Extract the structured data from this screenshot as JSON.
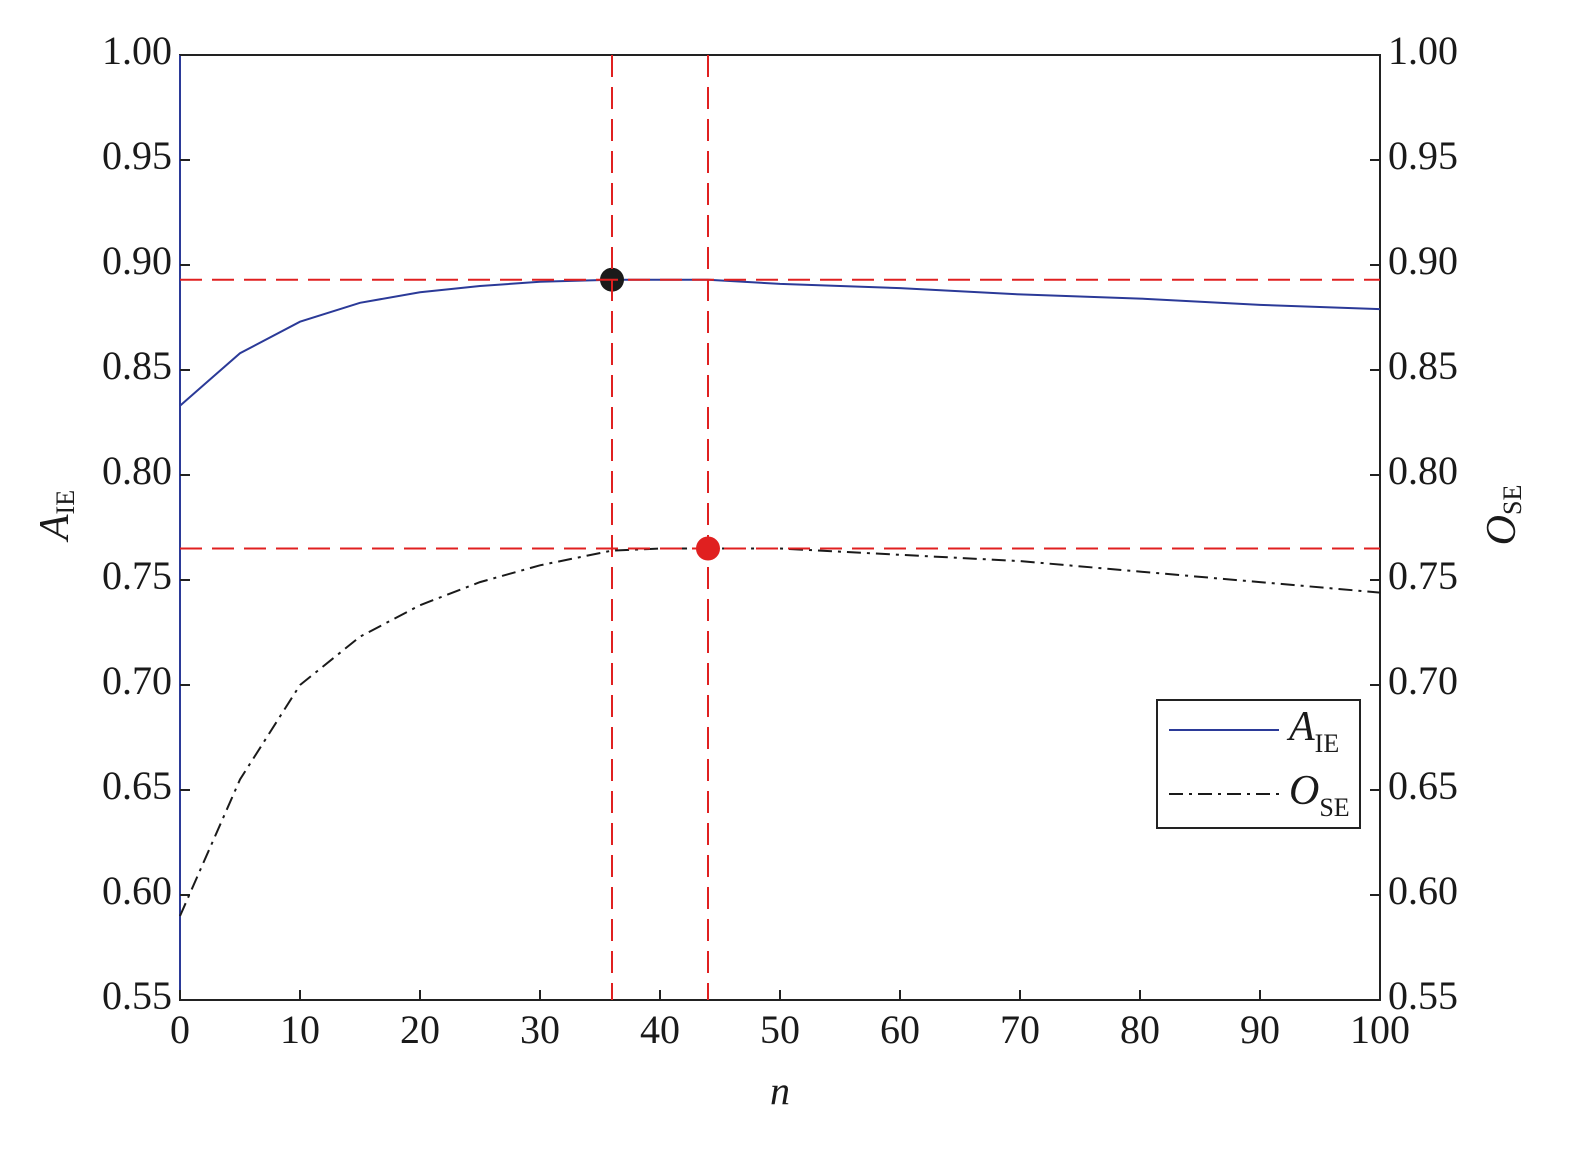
{
  "chart_data": {
    "type": "line",
    "xlabel": "n",
    "ylabel": "A",
    "ylabel_subscript": "IE",
    "y2label": "O",
    "y2label_subscript": "SE",
    "x": [
      0,
      5,
      10,
      15,
      20,
      25,
      30,
      36,
      40,
      44,
      50,
      60,
      70,
      80,
      90,
      100
    ],
    "series": [
      {
        "name": "A",
        "name_subscript": "IE",
        "color": "#2b3a98",
        "style": "solid",
        "values": [
          0.833,
          0.858,
          0.873,
          0.882,
          0.887,
          0.89,
          0.892,
          0.893,
          0.893,
          0.893,
          0.891,
          0.889,
          0.886,
          0.884,
          0.881,
          0.879
        ]
      },
      {
        "name": "O",
        "name_subscript": "SE",
        "color": "#1a1a1a",
        "style": "dashdot",
        "axis": "y2",
        "values": [
          0.59,
          0.655,
          0.7,
          0.723,
          0.738,
          0.749,
          0.757,
          0.764,
          0.765,
          0.765,
          0.765,
          0.762,
          0.759,
          0.754,
          0.749,
          0.744
        ]
      }
    ],
    "xlim": [
      0,
      100
    ],
    "xticks": [
      0,
      10,
      20,
      30,
      40,
      50,
      60,
      70,
      80,
      90,
      100
    ],
    "ylim": [
      0.55,
      1.0
    ],
    "yticks": [
      0.55,
      {
        "value": 0.6,
        "label": "0.60"
      },
      0.65,
      {
        "value": 0.7,
        "label": "0.70"
      },
      0.75,
      {
        "value": 0.8,
        "label": "0.80"
      },
      0.85,
      {
        "value": 0.9,
        "label": "0.90"
      },
      0.95,
      {
        "value": 1,
        "label": "1.00"
      }
    ],
    "y2lim": [
      0.55,
      1.0
    ],
    "y2ticks": [
      0.55,
      {
        "value": 0.6,
        "label": "0.60"
      },
      0.65,
      {
        "value": 0.7,
        "label": "0.70"
      },
      0.75,
      {
        "value": 0.8,
        "label": "0.80"
      },
      0.85,
      {
        "value": 0.9,
        "label": "0.90"
      },
      0.95,
      {
        "value": 1,
        "label": "1.00"
      }
    ],
    "reference_color": "#e02020",
    "vlines": [
      36,
      44
    ],
    "hlines": [
      0.893,
      0.765
    ],
    "markers": [
      {
        "x": 36,
        "y": 0.893,
        "color": "#1a1a1a"
      },
      {
        "x": 44,
        "y": 0.765,
        "color": "#e02020"
      }
    ],
    "legend": "lower right"
  }
}
